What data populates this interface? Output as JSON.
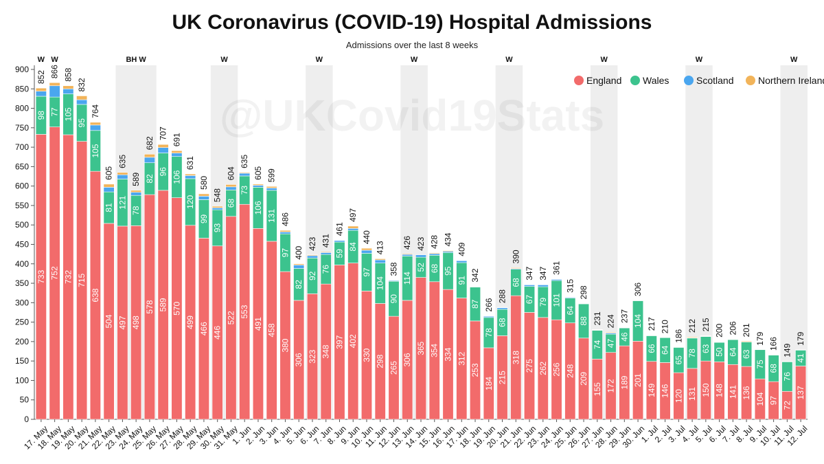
{
  "chart_data": {
    "type": "bar",
    "stacked": true,
    "title": "UK Coronavirus (COVID-19) Hospital Admissions",
    "subtitle": "Admissions over the last 8 weeks",
    "watermark": "@UKCovid19Stats",
    "xlabel": "",
    "ylabel": "",
    "ylim": [
      0,
      900
    ],
    "yticks": [
      0,
      50,
      100,
      150,
      200,
      250,
      300,
      350,
      400,
      450,
      500,
      550,
      600,
      650,
      700,
      750,
      800,
      850,
      900
    ],
    "legend_position": "top-right",
    "categories": [
      "17. May",
      "18. May",
      "19. May",
      "20. May",
      "21. May",
      "22. May",
      "23. May",
      "24. May",
      "25. May",
      "26. May",
      "27. May",
      "28. May",
      "29. May",
      "30. May",
      "31. May",
      "1. Jun",
      "2. Jun",
      "3. Jun",
      "4. Jun",
      "5. Jun",
      "6. Jun",
      "7. Jun",
      "8. Jun",
      "9. Jun",
      "10. Jun",
      "11. Jun",
      "12. Jun",
      "13. Jun",
      "14. Jun",
      "15. Jun",
      "16. Jun",
      "17. Jun",
      "18. Jun",
      "19. Jun",
      "20. Jun",
      "21. Jun",
      "22. Jun",
      "23. Jun",
      "24. Jun",
      "25. Jun",
      "26. Jun",
      "27. Jun",
      "28. Jun",
      "29. Jun",
      "30. Jun",
      "1. Jul",
      "2. Jul",
      "3. Jul",
      "4. Jul",
      "5. Jul",
      "6. Jul",
      "7. Jul",
      "8. Jul",
      "9. Jul",
      "10. Jul",
      "11. Jul",
      "12. Jul"
    ],
    "series": [
      {
        "name": "England",
        "color": "#f26b6b",
        "values": [
          733,
          752,
          732,
          715,
          638,
          504,
          497,
          498,
          578,
          589,
          570,
          499,
          466,
          446,
          522,
          553,
          491,
          458,
          380,
          306,
          323,
          348,
          397,
          402,
          330,
          298,
          265,
          306,
          365,
          354,
          334,
          312,
          253,
          184,
          215,
          318,
          275,
          262,
          256,
          248,
          209,
          155,
          172,
          189,
          201,
          149,
          146,
          120,
          131,
          150,
          148,
          141,
          136,
          104,
          97,
          72,
          137
        ]
      },
      {
        "name": "Wales",
        "color": "#3cc38e",
        "values": [
          98,
          77,
          105,
          95,
          105,
          81,
          121,
          78,
          82,
          96,
          106,
          120,
          99,
          93,
          68,
          73,
          106,
          131,
          97,
          82,
          92,
          76,
          59,
          84,
          97,
          104,
          90,
          114,
          52,
          68,
          95,
          91,
          87,
          78,
          68,
          68,
          67,
          79,
          101,
          64,
          88,
          74,
          47,
          46,
          104,
          66,
          64,
          65,
          78,
          63,
          50,
          64,
          63,
          75,
          68,
          76,
          41
        ]
      },
      {
        "name": "Scotland",
        "color": "#4aa6ef",
        "values": [
          13,
          29,
          13,
          12,
          14,
          12,
          11,
          8,
          14,
          14,
          9,
          8,
          9,
          5,
          8,
          7,
          5,
          6,
          5,
          9,
          6,
          5,
          4,
          5,
          8,
          8,
          2,
          4,
          6,
          4,
          3,
          5,
          1,
          3,
          4,
          2,
          4,
          5,
          3,
          2,
          1,
          1,
          3,
          1,
          1,
          1,
          0,
          0,
          1,
          1,
          1,
          0,
          0,
          0,
          0,
          0,
          0
        ]
      },
      {
        "name": "Northern Ireland",
        "color": "#f2b45a",
        "values": [
          8,
          8,
          8,
          10,
          7,
          8,
          6,
          5,
          8,
          8,
          6,
          4,
          6,
          4,
          6,
          2,
          3,
          4,
          4,
          3,
          2,
          2,
          1,
          6,
          5,
          3,
          1,
          2,
          0,
          2,
          2,
          1,
          1,
          1,
          1,
          2,
          1,
          1,
          1,
          1,
          0,
          1,
          2,
          1,
          0,
          1,
          0,
          1,
          2,
          1,
          1,
          1,
          2,
          0,
          1,
          1,
          1
        ]
      }
    ],
    "totals": [
      852,
      866,
      858,
      832,
      764,
      605,
      635,
      589,
      682,
      707,
      691,
      631,
      580,
      548,
      604,
      635,
      605,
      599,
      486,
      400,
      423,
      431,
      461,
      497,
      440,
      413,
      358,
      426,
      423,
      428,
      434,
      409,
      342,
      266,
      288,
      390,
      347,
      347,
      361,
      315,
      298,
      231,
      224,
      237,
      306,
      217,
      210,
      186,
      212,
      215,
      200,
      206,
      201,
      179,
      166,
      149,
      179
    ],
    "weekend_bands": [
      {
        "start": 6,
        "end": 8,
        "label": "BH W"
      },
      {
        "start": 13,
        "end": 14,
        "label": "W"
      },
      {
        "start": 20,
        "end": 21,
        "label": "W"
      },
      {
        "start": 27,
        "end": 28,
        "label": "W"
      },
      {
        "start": 34,
        "end": 35,
        "label": "W"
      },
      {
        "start": 41,
        "end": 42,
        "label": "W"
      },
      {
        "start": 48,
        "end": 49,
        "label": "W"
      },
      {
        "start": 55,
        "end": 56,
        "label": "W"
      }
    ],
    "single_markers": [
      {
        "index": 0,
        "label": "W"
      },
      {
        "index": 1,
        "label": "W"
      }
    ]
  }
}
